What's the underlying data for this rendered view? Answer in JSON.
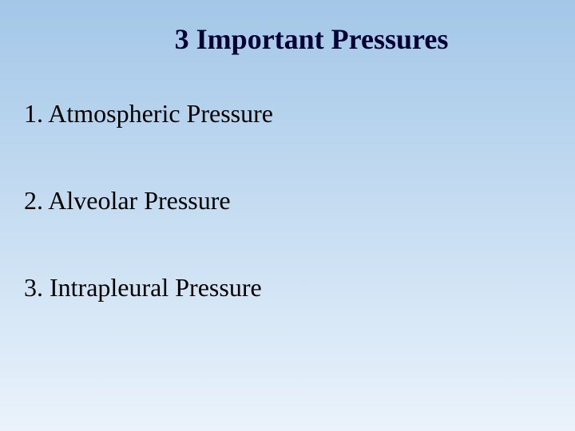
{
  "slide": {
    "title": "3 Important Pressures",
    "title_fontsize": 36,
    "title_color": "#000033",
    "items": [
      "1. Atmospheric Pressure",
      "2. Alveolar Pressure",
      "3. Intrapleural Pressure"
    ],
    "item_fontsize": 32,
    "item_color": "#000000",
    "background_gradient_top": "#a3c7e8",
    "background_gradient_bottom": "#eaf3fb"
  }
}
